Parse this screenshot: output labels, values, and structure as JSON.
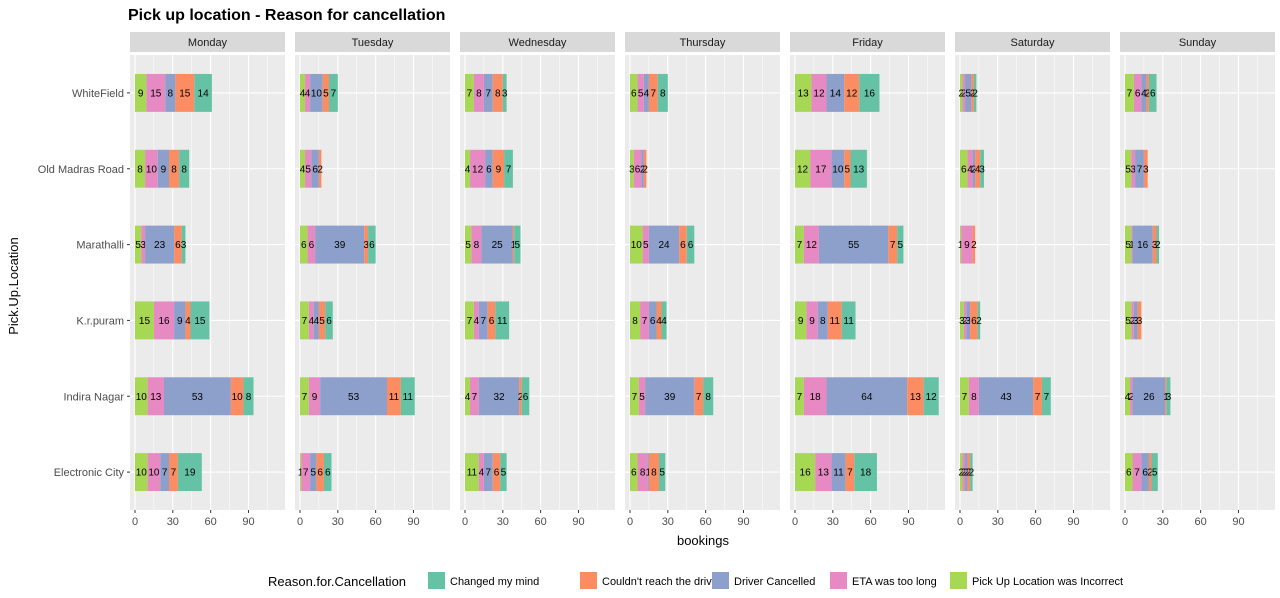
{
  "chart_data": {
    "type": "bar",
    "orientation": "horizontal",
    "stacked": true,
    "title": "Pick up location - Reason for cancellation",
    "xlabel": "bookings",
    "ylabel": "Pick.Up.Location",
    "xlim": [
      0,
      115
    ],
    "xticks": [
      "0",
      "30",
      "60",
      "90"
    ],
    "grid": true,
    "legend": {
      "title": "Reason.for.Cancellation",
      "position": "bottom"
    },
    "categories": [
      "WhiteField",
      "Old Madras Road",
      "Marathalli",
      "K.r.puram",
      "Indira Nagar",
      "Electronic City"
    ],
    "series": [
      {
        "name": "Pick Up Location was Incorrect",
        "color": "#a6d854"
      },
      {
        "name": "ETA was too long",
        "color": "#e78ac3"
      },
      {
        "name": "Driver Cancelled",
        "color": "#8da0cb"
      },
      {
        "name": "Couldn't reach the driver",
        "color": "#fc8d62"
      },
      {
        "name": "Changed my mind",
        "color": "#66c2a5"
      }
    ],
    "legend_order": [
      4,
      3,
      2,
      1,
      0
    ],
    "facets": [
      {
        "name": "Monday",
        "values": [
          [
            9,
            15,
            8,
            15,
            14
          ],
          [
            8,
            10,
            9,
            8,
            8
          ],
          [
            5,
            3,
            23,
            6,
            3
          ],
          [
            15,
            16,
            9,
            4,
            15
          ],
          [
            10,
            13,
            53,
            10,
            8
          ],
          [
            10,
            10,
            7,
            7,
            19
          ]
        ]
      },
      {
        "name": "Tuesday",
        "values": [
          [
            4,
            4,
            10,
            5,
            7
          ],
          [
            4,
            5,
            6,
            2,
            0
          ],
          [
            6,
            6,
            39,
            3,
            6
          ],
          [
            7,
            4,
            4,
            5,
            6
          ],
          [
            7,
            9,
            53,
            11,
            11
          ],
          [
            1,
            7,
            5,
            6,
            6
          ]
        ]
      },
      {
        "name": "Wednesday",
        "values": [
          [
            7,
            8,
            7,
            8,
            3
          ],
          [
            4,
            12,
            6,
            9,
            7
          ],
          [
            5,
            8,
            25,
            1,
            5
          ],
          [
            7,
            4,
            7,
            6,
            11
          ],
          [
            4,
            7,
            32,
            2,
            6
          ],
          [
            11,
            4,
            7,
            6,
            5
          ]
        ]
      },
      {
        "name": "Thursday",
        "values": [
          [
            6,
            5,
            4,
            7,
            8
          ],
          [
            3,
            6,
            2,
            2,
            0
          ],
          [
            10,
            5,
            24,
            6,
            6
          ],
          [
            8,
            7,
            6,
            4,
            4
          ],
          [
            7,
            5,
            39,
            7,
            8
          ],
          [
            6,
            8,
            1,
            8,
            5
          ]
        ]
      },
      {
        "name": "Friday",
        "values": [
          [
            13,
            12,
            14,
            12,
            16
          ],
          [
            12,
            17,
            10,
            5,
            13
          ],
          [
            7,
            12,
            55,
            7,
            5
          ],
          [
            9,
            9,
            8,
            11,
            11
          ],
          [
            7,
            18,
            64,
            13,
            12
          ],
          [
            16,
            13,
            11,
            7,
            18
          ]
        ]
      },
      {
        "name": "Saturday",
        "values": [
          [
            2,
            2,
            5,
            2,
            2
          ],
          [
            6,
            4,
            2,
            4,
            3
          ],
          [
            1,
            9,
            0,
            2,
            0
          ],
          [
            3,
            2,
            3,
            6,
            2
          ],
          [
            7,
            8,
            43,
            7,
            7
          ],
          [
            2,
            2,
            2,
            2,
            2
          ]
        ]
      },
      {
        "name": "Sunday",
        "values": [
          [
            7,
            6,
            4,
            2,
            6
          ],
          [
            5,
            3,
            7,
            3,
            0
          ],
          [
            5,
            1,
            16,
            3,
            2
          ],
          [
            5,
            2,
            3,
            3,
            0
          ],
          [
            4,
            2,
            26,
            1,
            3
          ],
          [
            6,
            7,
            6,
            2,
            5
          ]
        ]
      }
    ]
  }
}
